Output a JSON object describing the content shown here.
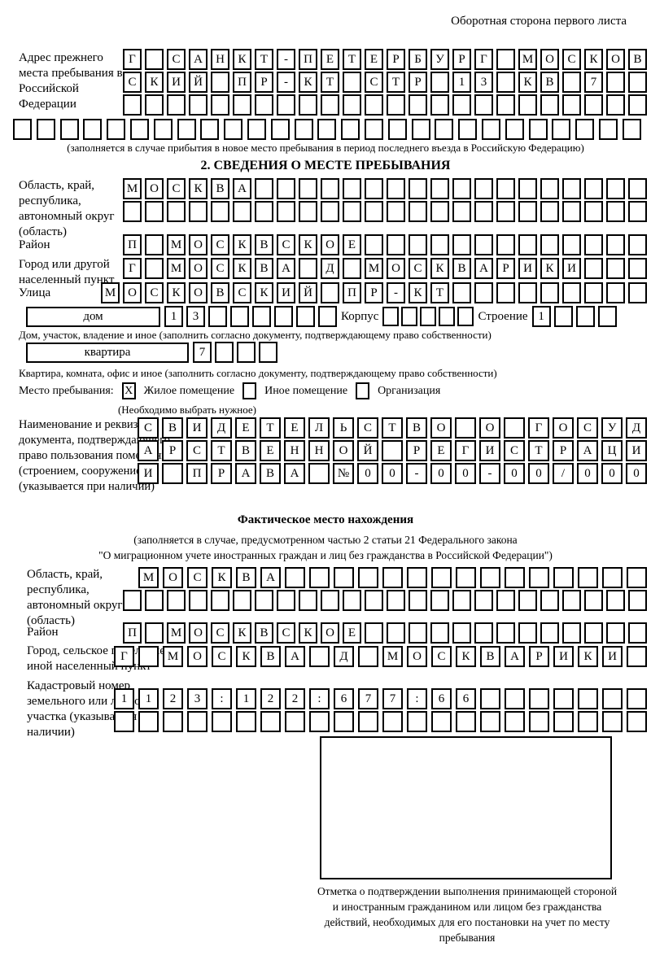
{
  "header": {
    "back_side_note": "Оборотная сторона первого листа"
  },
  "prev_address": {
    "label": "Адрес прежнего места пребывания в Российской Федерации",
    "rows": {
      "r1": [
        "Г",
        "",
        "С",
        "А",
        "Н",
        "К",
        "Т",
        "-",
        "П",
        "Е",
        "Т",
        "Е",
        "Р",
        "Б",
        "У",
        "Р",
        "Г",
        "",
        "М",
        "О",
        "С",
        "К",
        "О",
        "В"
      ],
      "r2": [
        "С",
        "К",
        "И",
        "Й",
        "",
        "П",
        "Р",
        "-",
        "К",
        "Т",
        "",
        "С",
        "Т",
        "Р",
        "",
        "1",
        "3",
        "",
        "К",
        "В",
        "",
        "7",
        "",
        ""
      ],
      "r3": [
        "",
        "",
        "",
        "",
        "",
        "",
        "",
        "",
        "",
        "",
        "",
        "",
        "",
        "",
        "",
        "",
        "",
        "",
        "",
        "",
        "",
        "",
        "",
        ""
      ],
      "r4": [
        "",
        "",
        "",
        "",
        "",
        "",
        "",
        "",
        "",
        "",
        "",
        "",
        "",
        "",
        "",
        "",
        "",
        "",
        "",
        "",
        "",
        "",
        "",
        "",
        "",
        "",
        ""
      ]
    },
    "caption": "(заполняется в случае прибытия в новое место пребывания в период последнего въезда в Российскую Федерацию)"
  },
  "section2": {
    "title": "2. СВЕДЕНИЯ О МЕСТЕ ПРЕБЫВАНИЯ",
    "region": {
      "label": "Область, край, республика, автономный округ (область)",
      "rows": {
        "r1": [
          "М",
          "О",
          "С",
          "К",
          "В",
          "А",
          "",
          "",
          "",
          "",
          "",
          "",
          "",
          "",
          "",
          "",
          "",
          "",
          "",
          "",
          "",
          "",
          "",
          ""
        ],
        "r2": [
          "",
          "",
          "",
          "",
          "",
          "",
          "",
          "",
          "",
          "",
          "",
          "",
          "",
          "",
          "",
          "",
          "",
          "",
          "",
          "",
          "",
          "",
          "",
          ""
        ]
      }
    },
    "district": {
      "label": "Район",
      "row": [
        "П",
        "",
        "М",
        "О",
        "С",
        "К",
        "В",
        "С",
        "К",
        "О",
        "Е",
        "",
        "",
        "",
        "",
        "",
        "",
        "",
        "",
        "",
        "",
        "",
        "",
        ""
      ]
    },
    "city": {
      "label": "Город или другой населенный пункт",
      "row": [
        "Г",
        "",
        "М",
        "О",
        "С",
        "К",
        "В",
        "А",
        "",
        "Д",
        "",
        "М",
        "О",
        "С",
        "К",
        "В",
        "А",
        "Р",
        "И",
        "К",
        "И",
        "",
        "",
        ""
      ]
    },
    "street": {
      "label": "Улица",
      "row": [
        "М",
        "О",
        "С",
        "К",
        "О",
        "В",
        "С",
        "К",
        "И",
        "Й",
        "",
        "П",
        "Р",
        "-",
        "К",
        "Т",
        "",
        "",
        "",
        "",
        "",
        "",
        "",
        "",
        ""
      ]
    },
    "house": {
      "box_label": "дом",
      "cells": [
        "1",
        "3",
        "",
        "",
        "",
        "",
        "",
        ""
      ],
      "korpus_label": "Корпус",
      "korpus_cells": [
        "",
        "",
        "",
        "",
        ""
      ],
      "stroenie_label": "Строение",
      "stroenie_cells": [
        "1",
        "",
        "",
        ""
      ]
    },
    "house_caption": "Дом, участок, владение и иное (заполнить согласно документу, подтверждающему право собственности)",
    "apartment": {
      "box_label": "квартира",
      "cells": [
        "7",
        "",
        "",
        ""
      ]
    },
    "apartment_caption": "Квартира, комната, офис и иное (заполнить согласно документу, подтверждающему право собственности)",
    "stay": {
      "label": "Место пребывания:",
      "options": [
        {
          "label": "Жилое помещение",
          "mark": "X"
        },
        {
          "label": "Иное помещение",
          "mark": ""
        },
        {
          "label": "Организация",
          "mark": ""
        }
      ],
      "hint": "(Необходимо выбрать нужное)"
    },
    "document": {
      "label": "Наименование и реквизиты документа, подтверждающего право пользования помещением (строением, сооружением) (указывается при наличии)",
      "rows": {
        "r1": [
          "С",
          "В",
          "И",
          "Д",
          "Е",
          "Т",
          "Е",
          "Л",
          "Ь",
          "С",
          "Т",
          "В",
          "О",
          "",
          "О",
          "",
          "Г",
          "О",
          "С",
          "У",
          "Д"
        ],
        "r2": [
          "А",
          "Р",
          "С",
          "Т",
          "В",
          "Е",
          "Н",
          "Н",
          "О",
          "Й",
          "",
          "Р",
          "Е",
          "Г",
          "И",
          "С",
          "Т",
          "Р",
          "А",
          "Ц",
          "И"
        ],
        "r3": [
          "И",
          "",
          "П",
          "Р",
          "А",
          "В",
          "А",
          "",
          "№",
          "0",
          "0",
          "-",
          "0",
          "0",
          "-",
          "0",
          "0",
          "/",
          "0",
          "0",
          "0"
        ]
      }
    }
  },
  "actual_location": {
    "title": "Фактическое место нахождения",
    "caption_line1": "(заполняется в случае, предусмотренном частью 2 статьи 21 Федерального закона",
    "caption_line2": "\"О миграционном учете иностранных граждан и лиц без гражданства в Российской Федерации\")",
    "region": {
      "label": "Область, край, республика, автономный округ (область)",
      "rows": {
        "r1": [
          "М",
          "О",
          "С",
          "К",
          "В",
          "А",
          "",
          "",
          "",
          "",
          "",
          "",
          "",
          "",
          "",
          "",
          "",
          "",
          "",
          "",
          ""
        ],
        "r2": [
          "",
          "",
          "",
          "",
          "",
          "",
          "",
          "",
          "",
          "",
          "",
          "",
          "",
          "",
          "",
          "",
          "",
          "",
          "",
          "",
          "",
          "",
          "",
          ""
        ]
      }
    },
    "district": {
      "label": "Район",
      "row": [
        "П",
        "",
        "М",
        "О",
        "С",
        "К",
        "В",
        "С",
        "К",
        "О",
        "Е",
        "",
        "",
        "",
        "",
        "",
        "",
        "",
        "",
        "",
        "",
        "",
        "",
        ""
      ]
    },
    "city": {
      "label": "Город, сельское поселение, иной населенный пункт",
      "row": [
        "Г",
        "",
        "М",
        "О",
        "С",
        "К",
        "В",
        "А",
        "",
        "Д",
        "",
        "М",
        "О",
        "С",
        "К",
        "В",
        "А",
        "Р",
        "И",
        "К",
        "И",
        ""
      ]
    },
    "cadastral": {
      "label": "Кадастровый номер земельного или лесного участка (указывается при наличии)",
      "rows": {
        "r1": [
          "1",
          "1",
          "2",
          "3",
          ":",
          "1",
          "2",
          "2",
          ":",
          "6",
          "7",
          "7",
          ":",
          "6",
          "6",
          "",
          "",
          "",
          "",
          "",
          "",
          ""
        ],
        "r2": [
          "",
          "",
          "",
          "",
          "",
          "",
          "",
          "",
          "",
          "",
          "",
          "",
          "",
          "",
          "",
          "",
          "",
          "",
          "",
          "",
          "",
          ""
        ]
      }
    },
    "stamp_caption": "Отметка о подтверждении выполнения принимающей стороной и иностранным гражданином или лицом без гражданства действий, необходимых для его постановки на учет по месту пребывания"
  }
}
